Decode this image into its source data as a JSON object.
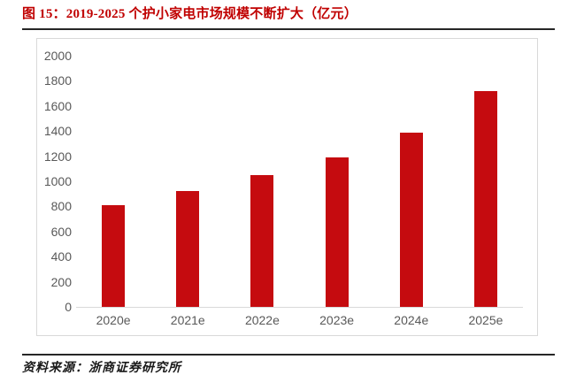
{
  "header": {
    "figure_label": "图 15：",
    "figure_title": "2019-2025 个护小家电市场规模不断扩大（亿元）"
  },
  "footer": {
    "source_label": "资料来源：",
    "source_text": "浙商证券研究所"
  },
  "colors": {
    "accent_red": "#C00000",
    "bar_red": "#C50B0F",
    "axis_text": "#595959",
    "chart_border": "#D9D9D9",
    "axis_line": "#D9D9D9",
    "rule": "#262626"
  },
  "chart_data": {
    "type": "bar",
    "title": "2019-2025 个护小家电市场规模不断扩大（亿元）",
    "unit": "亿元",
    "categories": [
      "2020e",
      "2021e",
      "2022e",
      "2023e",
      "2024e",
      "2025e"
    ],
    "values": [
      810,
      920,
      1050,
      1190,
      1390,
      1720
    ],
    "ylim": [
      0,
      2000
    ],
    "yticks": [
      2000,
      1800,
      1600,
      1400,
      1200,
      1000,
      800,
      600,
      400,
      200,
      0
    ],
    "ytick_step": 200,
    "grid": false,
    "legend": false,
    "bar_color": "#C50B0F"
  }
}
